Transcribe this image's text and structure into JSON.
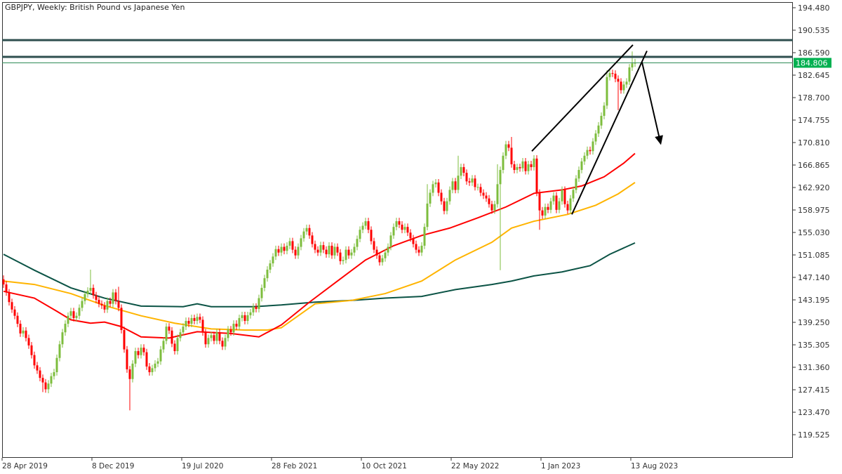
{
  "title": "GBPJPY, Weekly:  British Pound vs Japanese Yen",
  "chart_data": {
    "type": "candlestick",
    "symbol": "GBPJPY",
    "timeframe": "Weekly",
    "ylim": [
      117.5,
      195.5
    ],
    "y_ticks": [
      "194.480",
      "190.535",
      "186.590",
      "182.645",
      "178.700",
      "174.755",
      "170.810",
      "166.865",
      "162.920",
      "158.975",
      "155.030",
      "151.085",
      "147.140",
      "143.195",
      "139.250",
      "135.305",
      "131.360",
      "127.415",
      "123.470",
      "119.525"
    ],
    "x_ticks": [
      {
        "label": "28 Apr 2019",
        "bar": 0
      },
      {
        "label": "8 Dec 2019",
        "bar": 32
      },
      {
        "label": "19 Jul 2020",
        "bar": 64
      },
      {
        "label": "28 Feb 2021",
        "bar": 96
      },
      {
        "label": "10 Oct 2021",
        "bar": 128
      },
      {
        "label": "22 May 2022",
        "bar": 160
      },
      {
        "label": "1 Jan 2023",
        "bar": 192
      },
      {
        "label": "13 Aug 2023",
        "bar": 224
      }
    ],
    "current_price": "184.806",
    "closes": [
      145.9,
      144.5,
      142.8,
      141.5,
      140.4,
      139.0,
      137.3,
      137.8,
      136.5,
      135.2,
      133.5,
      131.7,
      130.8,
      129.5,
      128.7,
      127.5,
      128.5,
      129.8,
      130.5,
      133.0,
      135.4,
      137.5,
      139.0,
      140.4,
      141.2,
      140.0,
      140.4,
      141.8,
      143.0,
      144.2,
      144.8,
      145.3,
      144.0,
      143.2,
      142.5,
      142.2,
      141.5,
      143.0,
      142.5,
      144.5,
      143.0,
      141.8,
      137.9,
      134.5,
      131.0,
      129.3,
      132.0,
      134.2,
      133.5,
      134.8,
      134.0,
      131.5,
      130.5,
      131.2,
      132.0,
      132.4,
      134.5,
      136.0,
      138.5,
      137.8,
      135.5,
      134.2,
      136.5,
      137.5,
      138.5,
      139.5,
      139.0,
      140.0,
      139.5,
      140.2,
      139.7,
      137.5,
      135.4,
      136.5,
      137.0,
      136.0,
      137.5,
      136.0,
      135.0,
      136.5,
      138.0,
      137.5,
      139.0,
      138.5,
      140.0,
      140.5,
      139.5,
      140.5,
      141.0,
      142.0,
      141.6,
      143.5,
      145.3,
      147.0,
      148.5,
      149.6,
      150.8,
      152.1,
      151.5,
      152.5,
      151.8,
      152.7,
      153.5,
      152.0,
      151.0,
      152.5,
      154.0,
      155.2,
      155.8,
      154.5,
      153.0,
      152.0,
      151.5,
      152.8,
      152.0,
      151.2,
      152.7,
      151.0,
      152.5,
      151.5,
      150.0,
      150.2,
      152.0,
      151.0,
      151.5,
      152.5,
      153.9,
      155.5,
      156.2,
      157.0,
      155.5,
      153.5,
      152.0,
      151.0,
      149.8,
      150.5,
      151.5,
      152.5,
      154.5,
      156.0,
      157.0,
      156.4,
      155.5,
      156.0,
      155.0,
      154.0,
      153.0,
      152.0,
      151.5,
      152.7,
      156.0,
      160.1,
      162.0,
      163.5,
      163.8,
      162.0,
      160.5,
      158.8,
      160.5,
      162.5,
      164.0,
      162.5,
      165.0,
      166.5,
      165.5,
      164.0,
      163.8,
      164.5,
      163.0,
      163.0,
      162.0,
      161.5,
      161.0,
      160.0,
      158.9,
      160.0,
      163.5,
      166.0,
      168.5,
      170.5,
      169.9,
      167.0,
      166.0,
      166.5,
      166.3,
      167.5,
      165.8,
      167.0,
      166.5,
      168.0,
      162.0,
      158.9,
      158.0,
      159.5,
      159.0,
      160.5,
      161.5,
      159.0,
      160.5,
      162.5,
      160.0,
      158.9,
      161.0,
      162.5,
      164.5,
      166.0,
      167.5,
      168.5,
      169.5,
      169.3,
      171.0,
      172.4,
      173.8,
      175.5,
      177.3,
      182.3,
      183.0,
      182.9,
      182.0,
      181.5,
      180.0,
      181.0,
      181.5,
      184.0,
      184.7,
      184.8
    ],
    "first_open": 146.8,
    "wick_highs": {
      "0": 147.5,
      "31": 148.5,
      "41": 145.5,
      "162": 168.5,
      "181": 171.8,
      "215": 183.5,
      "224": 186.8,
      "225": 185.5,
      "176": 167.0,
      "151": 163.5
    },
    "wick_lows": {
      "14": 127.0,
      "16": 126.8,
      "45": 123.8,
      "177": 148.4,
      "219": 176.5,
      "191": 155.5
    },
    "moving_averages": [
      {
        "color": "#0b5345",
        "points": [
          [
            0,
            151.2
          ],
          [
            11,
            148.4
          ],
          [
            24,
            145.3
          ],
          [
            36,
            143.5
          ],
          [
            49,
            142.1
          ],
          [
            64,
            142.0
          ],
          [
            69,
            142.5
          ],
          [
            74,
            142.0
          ],
          [
            89,
            142.0
          ],
          [
            99,
            142.3
          ],
          [
            111,
            142.8
          ],
          [
            124,
            143.1
          ],
          [
            136,
            143.5
          ],
          [
            149,
            143.8
          ],
          [
            161,
            145.0
          ],
          [
            174,
            145.9
          ],
          [
            181,
            146.5
          ],
          [
            189,
            147.4
          ],
          [
            199,
            148.1
          ],
          [
            209,
            149.2
          ],
          [
            216,
            151.2
          ],
          [
            225,
            153.2
          ]
        ]
      },
      {
        "color": "#ffb400",
        "points": [
          [
            0,
            146.5
          ],
          [
            11,
            145.9
          ],
          [
            24,
            144.3
          ],
          [
            36,
            142.2
          ],
          [
            49,
            140.4
          ],
          [
            61,
            139.1
          ],
          [
            74,
            138.1
          ],
          [
            86,
            137.9
          ],
          [
            94,
            137.9
          ],
          [
            99,
            138.3
          ],
          [
            111,
            142.5
          ],
          [
            124,
            143.1
          ],
          [
            136,
            144.3
          ],
          [
            149,
            146.5
          ],
          [
            161,
            150.2
          ],
          [
            174,
            153.3
          ],
          [
            181,
            155.8
          ],
          [
            189,
            157.0
          ],
          [
            201,
            158.2
          ],
          [
            211,
            159.8
          ],
          [
            219,
            161.8
          ],
          [
            225,
            163.8
          ]
        ]
      },
      {
        "color": "#ff0000",
        "points": [
          [
            0,
            144.7
          ],
          [
            11,
            143.5
          ],
          [
            19,
            141.2
          ],
          [
            24,
            139.7
          ],
          [
            31,
            139.1
          ],
          [
            36,
            139.3
          ],
          [
            42,
            138.5
          ],
          [
            49,
            136.7
          ],
          [
            59,
            136.5
          ],
          [
            69,
            137.6
          ],
          [
            81,
            137.3
          ],
          [
            91,
            136.7
          ],
          [
            99,
            138.8
          ],
          [
            109,
            142.8
          ],
          [
            119,
            146.5
          ],
          [
            129,
            150.2
          ],
          [
            139,
            152.7
          ],
          [
            149,
            154.5
          ],
          [
            159,
            155.8
          ],
          [
            169,
            157.6
          ],
          [
            179,
            159.5
          ],
          [
            189,
            161.9
          ],
          [
            199,
            162.5
          ],
          [
            206,
            163.2
          ],
          [
            214,
            164.8
          ],
          [
            221,
            167.2
          ],
          [
            225,
            168.9
          ]
        ]
      }
    ],
    "horizontal_levels": [
      188.8,
      185.85
    ],
    "trendlines": [
      {
        "from": [
          188.25,
          169.3
        ],
        "to": [
          224.25,
          187.95
        ]
      },
      {
        "from": [
          202.5,
          158.2
        ],
        "to": [
          229.25,
          186.9
        ]
      }
    ],
    "arrow": {
      "from": [
        227.5,
        184.9
      ],
      "to": [
        234.25,
        170.4
      ]
    },
    "colors": {
      "bull": "#7dbd3d",
      "bear": "#ff0000",
      "level": "#2f4f4f",
      "price_tag": "#00b050",
      "trend": "#000000"
    }
  }
}
